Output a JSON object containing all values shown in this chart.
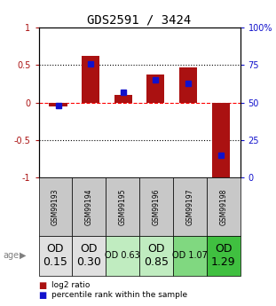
{
  "title": "GDS2591 / 3424",
  "samples": [
    "GSM99193",
    "GSM99194",
    "GSM99195",
    "GSM99196",
    "GSM99197",
    "GSM99198"
  ],
  "log2_ratio": [
    -0.05,
    0.62,
    0.1,
    0.37,
    0.47,
    -1.02
  ],
  "percentile_rank": [
    48,
    76,
    57,
    65,
    63,
    15
  ],
  "bar_color": "#aa1111",
  "dot_color": "#1111cc",
  "ylim_left": [
    -1,
    1
  ],
  "ylim_right": [
    0,
    100
  ],
  "yticks_left": [
    -1,
    -0.5,
    0,
    0.5,
    1
  ],
  "yticks_right": [
    0,
    25,
    50,
    75,
    100
  ],
  "ytick_labels_left": [
    "-1",
    "-0.5",
    "0",
    "0.5",
    "1"
  ],
  "ytick_labels_right": [
    "0",
    "25",
    "50",
    "75",
    "100%"
  ],
  "age_labels": [
    "OD\n0.15",
    "OD\n0.30",
    "OD 0.63",
    "OD\n0.85",
    "OD 1.07",
    "OD\n1.29"
  ],
  "age_label_fontsize": [
    9,
    9,
    7,
    9,
    7,
    9
  ],
  "cell_colors": [
    "#e0e0e0",
    "#e0e0e0",
    "#c0ecc0",
    "#c0ecc0",
    "#80d880",
    "#40c040"
  ],
  "sample_cell_color": "#c8c8c8",
  "legend_items": [
    "log2 ratio",
    "percentile rank within the sample"
  ],
  "legend_colors": [
    "#aa1111",
    "#1111cc"
  ]
}
